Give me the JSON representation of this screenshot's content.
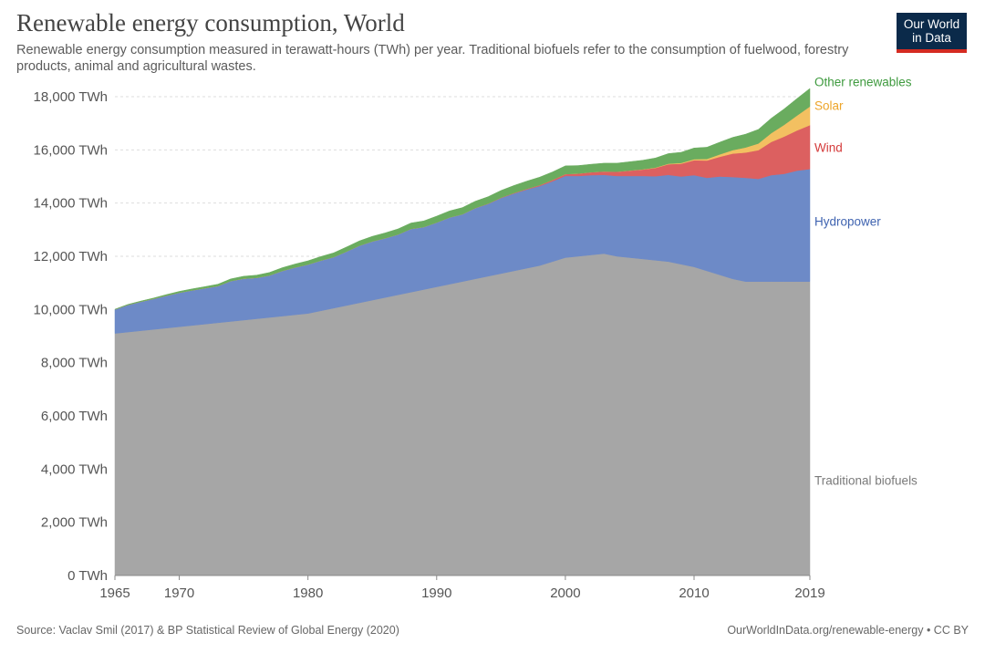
{
  "header": {
    "title": "Renewable energy consumption, World",
    "subtitle": "Renewable energy consumption measured in terawatt-hours (TWh) per year. Traditional biofuels refer to the consumption of fuelwood, forestry products, animal and agricultural wastes.",
    "logo_line1": "Our World",
    "logo_line2": "in Data"
  },
  "footer": {
    "source": "Source: Vaclav Smil (2017) & BP Statistical Review of Global Energy (2020)",
    "credit": "OurWorldInData.org/renewable-energy • CC BY"
  },
  "colors": {
    "Traditional biofuels": "#a6a6a6",
    "Hydropower": "#6d8ac7",
    "Wind": "#dc6060",
    "Solar": "#f3c061",
    "Other renewables": "#6aac5f"
  },
  "label_colors": {
    "Traditional biofuels": "#7a7a7a",
    "Hydropower": "#3f63b0",
    "Wind": "#d43a3a",
    "Solar": "#eda52a",
    "Other renewables": "#3e9a3e"
  },
  "chart_data": {
    "type": "area",
    "stacked": true,
    "title": "Renewable energy consumption, World",
    "xlabel": "",
    "ylabel": "",
    "ylim": [
      0,
      18000
    ],
    "xlim": [
      1965,
      2019
    ],
    "x_ticks": [
      1965,
      1970,
      1980,
      1990,
      2000,
      2010,
      2019
    ],
    "y_ticks": [
      0,
      2000,
      4000,
      6000,
      8000,
      10000,
      12000,
      14000,
      16000,
      18000
    ],
    "y_tick_labels": [
      "0 TWh",
      "2,000 TWh",
      "4,000 TWh",
      "6,000 TWh",
      "8,000 TWh",
      "10,000 TWh",
      "12,000 TWh",
      "14,000 TWh",
      "16,000 TWh",
      "18,000 TWh"
    ],
    "grid": true,
    "x": [
      1965,
      1966,
      1967,
      1968,
      1969,
      1970,
      1971,
      1972,
      1973,
      1974,
      1975,
      1976,
      1977,
      1978,
      1979,
      1980,
      1981,
      1982,
      1983,
      1984,
      1985,
      1986,
      1987,
      1988,
      1989,
      1990,
      1991,
      1992,
      1993,
      1994,
      1995,
      1996,
      1997,
      1998,
      1999,
      2000,
      2001,
      2002,
      2003,
      2004,
      2005,
      2006,
      2007,
      2008,
      2009,
      2010,
      2011,
      2012,
      2013,
      2014,
      2015,
      2016,
      2017,
      2018,
      2019
    ],
    "series": [
      {
        "name": "Traditional biofuels",
        "values": [
          9100,
          9150,
          9200,
          9250,
          9300,
          9350,
          9400,
          9450,
          9500,
          9550,
          9600,
          9650,
          9700,
          9750,
          9800,
          9850,
          9950,
          10050,
          10150,
          10250,
          10350,
          10450,
          10550,
          10650,
          10750,
          10850,
          10950,
          11050,
          11150,
          11250,
          11350,
          11450,
          11550,
          11650,
          11800,
          11950,
          12000,
          12050,
          12100,
          12000,
          11950,
          11900,
          11850,
          11800,
          11700,
          11600,
          11450,
          11300,
          11150,
          11050,
          11050,
          11050,
          11050,
          11050,
          11050
        ]
      },
      {
        "name": "Hydropower",
        "values": [
          900,
          1020,
          1090,
          1150,
          1220,
          1280,
          1320,
          1350,
          1380,
          1520,
          1560,
          1540,
          1580,
          1700,
          1780,
          1840,
          1890,
          1920,
          2030,
          2150,
          2210,
          2230,
          2270,
          2380,
          2350,
          2420,
          2510,
          2530,
          2660,
          2720,
          2840,
          2910,
          2960,
          2990,
          3020,
          3070,
          3020,
          3000,
          2960,
          3020,
          3070,
          3120,
          3160,
          3260,
          3300,
          3450,
          3500,
          3700,
          3830,
          3900,
          3860,
          4000,
          4050,
          4170,
          4230
        ]
      },
      {
        "name": "Wind",
        "values": [
          0,
          0,
          0,
          0,
          0,
          0,
          0,
          0,
          0,
          0,
          0,
          0,
          0,
          0,
          0,
          0,
          0,
          0,
          0,
          0,
          0,
          0,
          0,
          0,
          0,
          0,
          0,
          0,
          5,
          10,
          15,
          20,
          25,
          35,
          50,
          70,
          90,
          110,
          130,
          160,
          200,
          240,
          310,
          400,
          480,
          560,
          650,
          740,
          880,
          950,
          1080,
          1250,
          1400,
          1510,
          1650
        ]
      },
      {
        "name": "Solar",
        "values": [
          0,
          0,
          0,
          0,
          0,
          0,
          0,
          0,
          0,
          0,
          0,
          0,
          0,
          0,
          0,
          0,
          0,
          0,
          0,
          0,
          0,
          0,
          0,
          0,
          0,
          0,
          0,
          0,
          0,
          0,
          0,
          0,
          0,
          0,
          0,
          0,
          0,
          0,
          0,
          0,
          5,
          10,
          15,
          20,
          30,
          40,
          60,
          90,
          130,
          190,
          250,
          330,
          440,
          560,
          700
        ]
      },
      {
        "name": "Other renewables",
        "values": [
          10,
          20,
          25,
          30,
          40,
          50,
          55,
          60,
          70,
          80,
          90,
          100,
          110,
          120,
          130,
          140,
          150,
          160,
          170,
          180,
          190,
          200,
          210,
          220,
          230,
          240,
          245,
          250,
          255,
          260,
          270,
          280,
          290,
          300,
          300,
          310,
          300,
          300,
          310,
          320,
          330,
          340,
          360,
          380,
          400,
          420,
          440,
          460,
          480,
          500,
          530,
          560,
          600,
          640,
          680
        ]
      }
    ]
  }
}
